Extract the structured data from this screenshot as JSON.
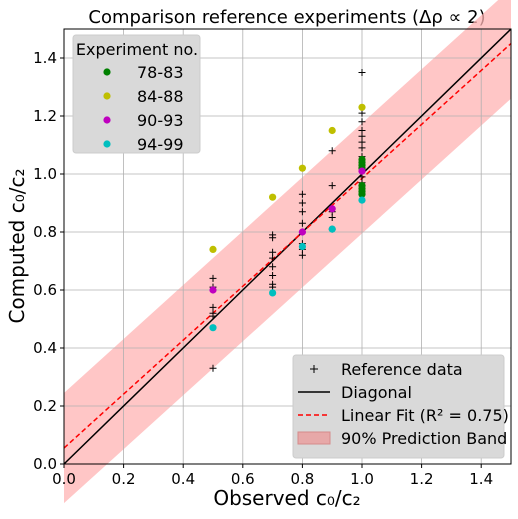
{
  "chart_data": {
    "type": "scatter",
    "title": "Comparison reference experiments (Δρ ∝ 2)",
    "xlabel": "Observed c₀/c₂",
    "ylabel": "Computed c₀/c₂",
    "xlim": [
      0.0,
      1.5
    ],
    "ylim": [
      0.0,
      1.5
    ],
    "xticks": [
      "0.0",
      "0.2",
      "0.4",
      "0.6",
      "0.8",
      "1.0",
      "1.2",
      "1.4"
    ],
    "yticks": [
      "0.0",
      "0.2",
      "0.4",
      "0.6",
      "0.8",
      "1.0",
      "1.2",
      "1.4"
    ],
    "grid": true,
    "experiment_legend": {
      "title": "Experiment no.",
      "placement": "top-left",
      "entries": [
        {
          "name": "78-83",
          "color": "#008000"
        },
        {
          "name": "84-88",
          "color": "#bfbf00"
        },
        {
          "name": "90-93",
          "color": "#bf00bf"
        },
        {
          "name": "94-99",
          "color": "#00bfbf"
        }
      ]
    },
    "series_legend": {
      "placement": "bottom-right",
      "entries": [
        {
          "name": "Reference data",
          "marker": "plus"
        },
        {
          "name": "Diagonal",
          "marker": "line"
        },
        {
          "name": "Linear Fit (R² = 0.75)",
          "marker": "dashed"
        },
        {
          "name": "90% Prediction Band",
          "marker": "patch"
        }
      ]
    },
    "reference_data": {
      "x": [
        0.5,
        0.5,
        0.5,
        0.5,
        0.5,
        0.5,
        0.7,
        0.7,
        0.7,
        0.7,
        0.7,
        0.7,
        0.7,
        0.7,
        0.8,
        0.8,
        0.8,
        0.8,
        0.8,
        0.8,
        0.8,
        0.8,
        0.9,
        0.9,
        0.9,
        0.9,
        0.9,
        1.0,
        1.0,
        1.0,
        1.0,
        1.0,
        1.0,
        1.0,
        1.0,
        1.0,
        1.0,
        1.0,
        1.0,
        1.0
      ],
      "y": [
        0.33,
        0.51,
        0.52,
        0.54,
        0.61,
        0.64,
        0.61,
        0.62,
        0.65,
        0.68,
        0.71,
        0.73,
        0.78,
        0.79,
        0.72,
        0.74,
        0.76,
        0.8,
        0.83,
        0.87,
        0.9,
        0.93,
        0.81,
        0.85,
        0.87,
        0.96,
        1.08,
        0.94,
        0.97,
        0.99,
        1.01,
        1.03,
        1.06,
        1.09,
        1.11,
        1.13,
        1.15,
        1.18,
        1.21,
        1.35
      ]
    },
    "experiments": [
      {
        "name": "78-83",
        "color": "#008000",
        "x": [
          1.0,
          1.0,
          1.0,
          1.0,
          1.0,
          1.0,
          1.0,
          1.0
        ],
        "y": [
          0.93,
          0.94,
          0.95,
          0.96,
          1.02,
          1.03,
          1.04,
          1.05
        ]
      },
      {
        "name": "84-88",
        "color": "#bfbf00",
        "x": [
          0.5,
          0.7,
          0.8,
          0.9,
          1.0
        ],
        "y": [
          0.74,
          0.92,
          1.02,
          1.15,
          1.23
        ]
      },
      {
        "name": "90-93",
        "color": "#bf00bf",
        "x": [
          0.5,
          0.8,
          0.9,
          1.0
        ],
        "y": [
          0.6,
          0.8,
          0.88,
          1.01
        ]
      },
      {
        "name": "94-99",
        "color": "#00bfbf",
        "x": [
          0.5,
          0.7,
          0.8,
          0.9,
          1.0
        ],
        "y": [
          0.47,
          0.59,
          0.75,
          0.81,
          0.91
        ]
      }
    ],
    "diagonal": {
      "x": [
        0.0,
        1.5
      ],
      "y": [
        0.0,
        1.5
      ],
      "color": "#000000"
    },
    "linear_fit": {
      "slope": 0.93,
      "intercept": 0.055,
      "color": "#ff0000"
    },
    "prediction_band": {
      "half_width": 0.19,
      "color": "#ffb3b3"
    }
  }
}
